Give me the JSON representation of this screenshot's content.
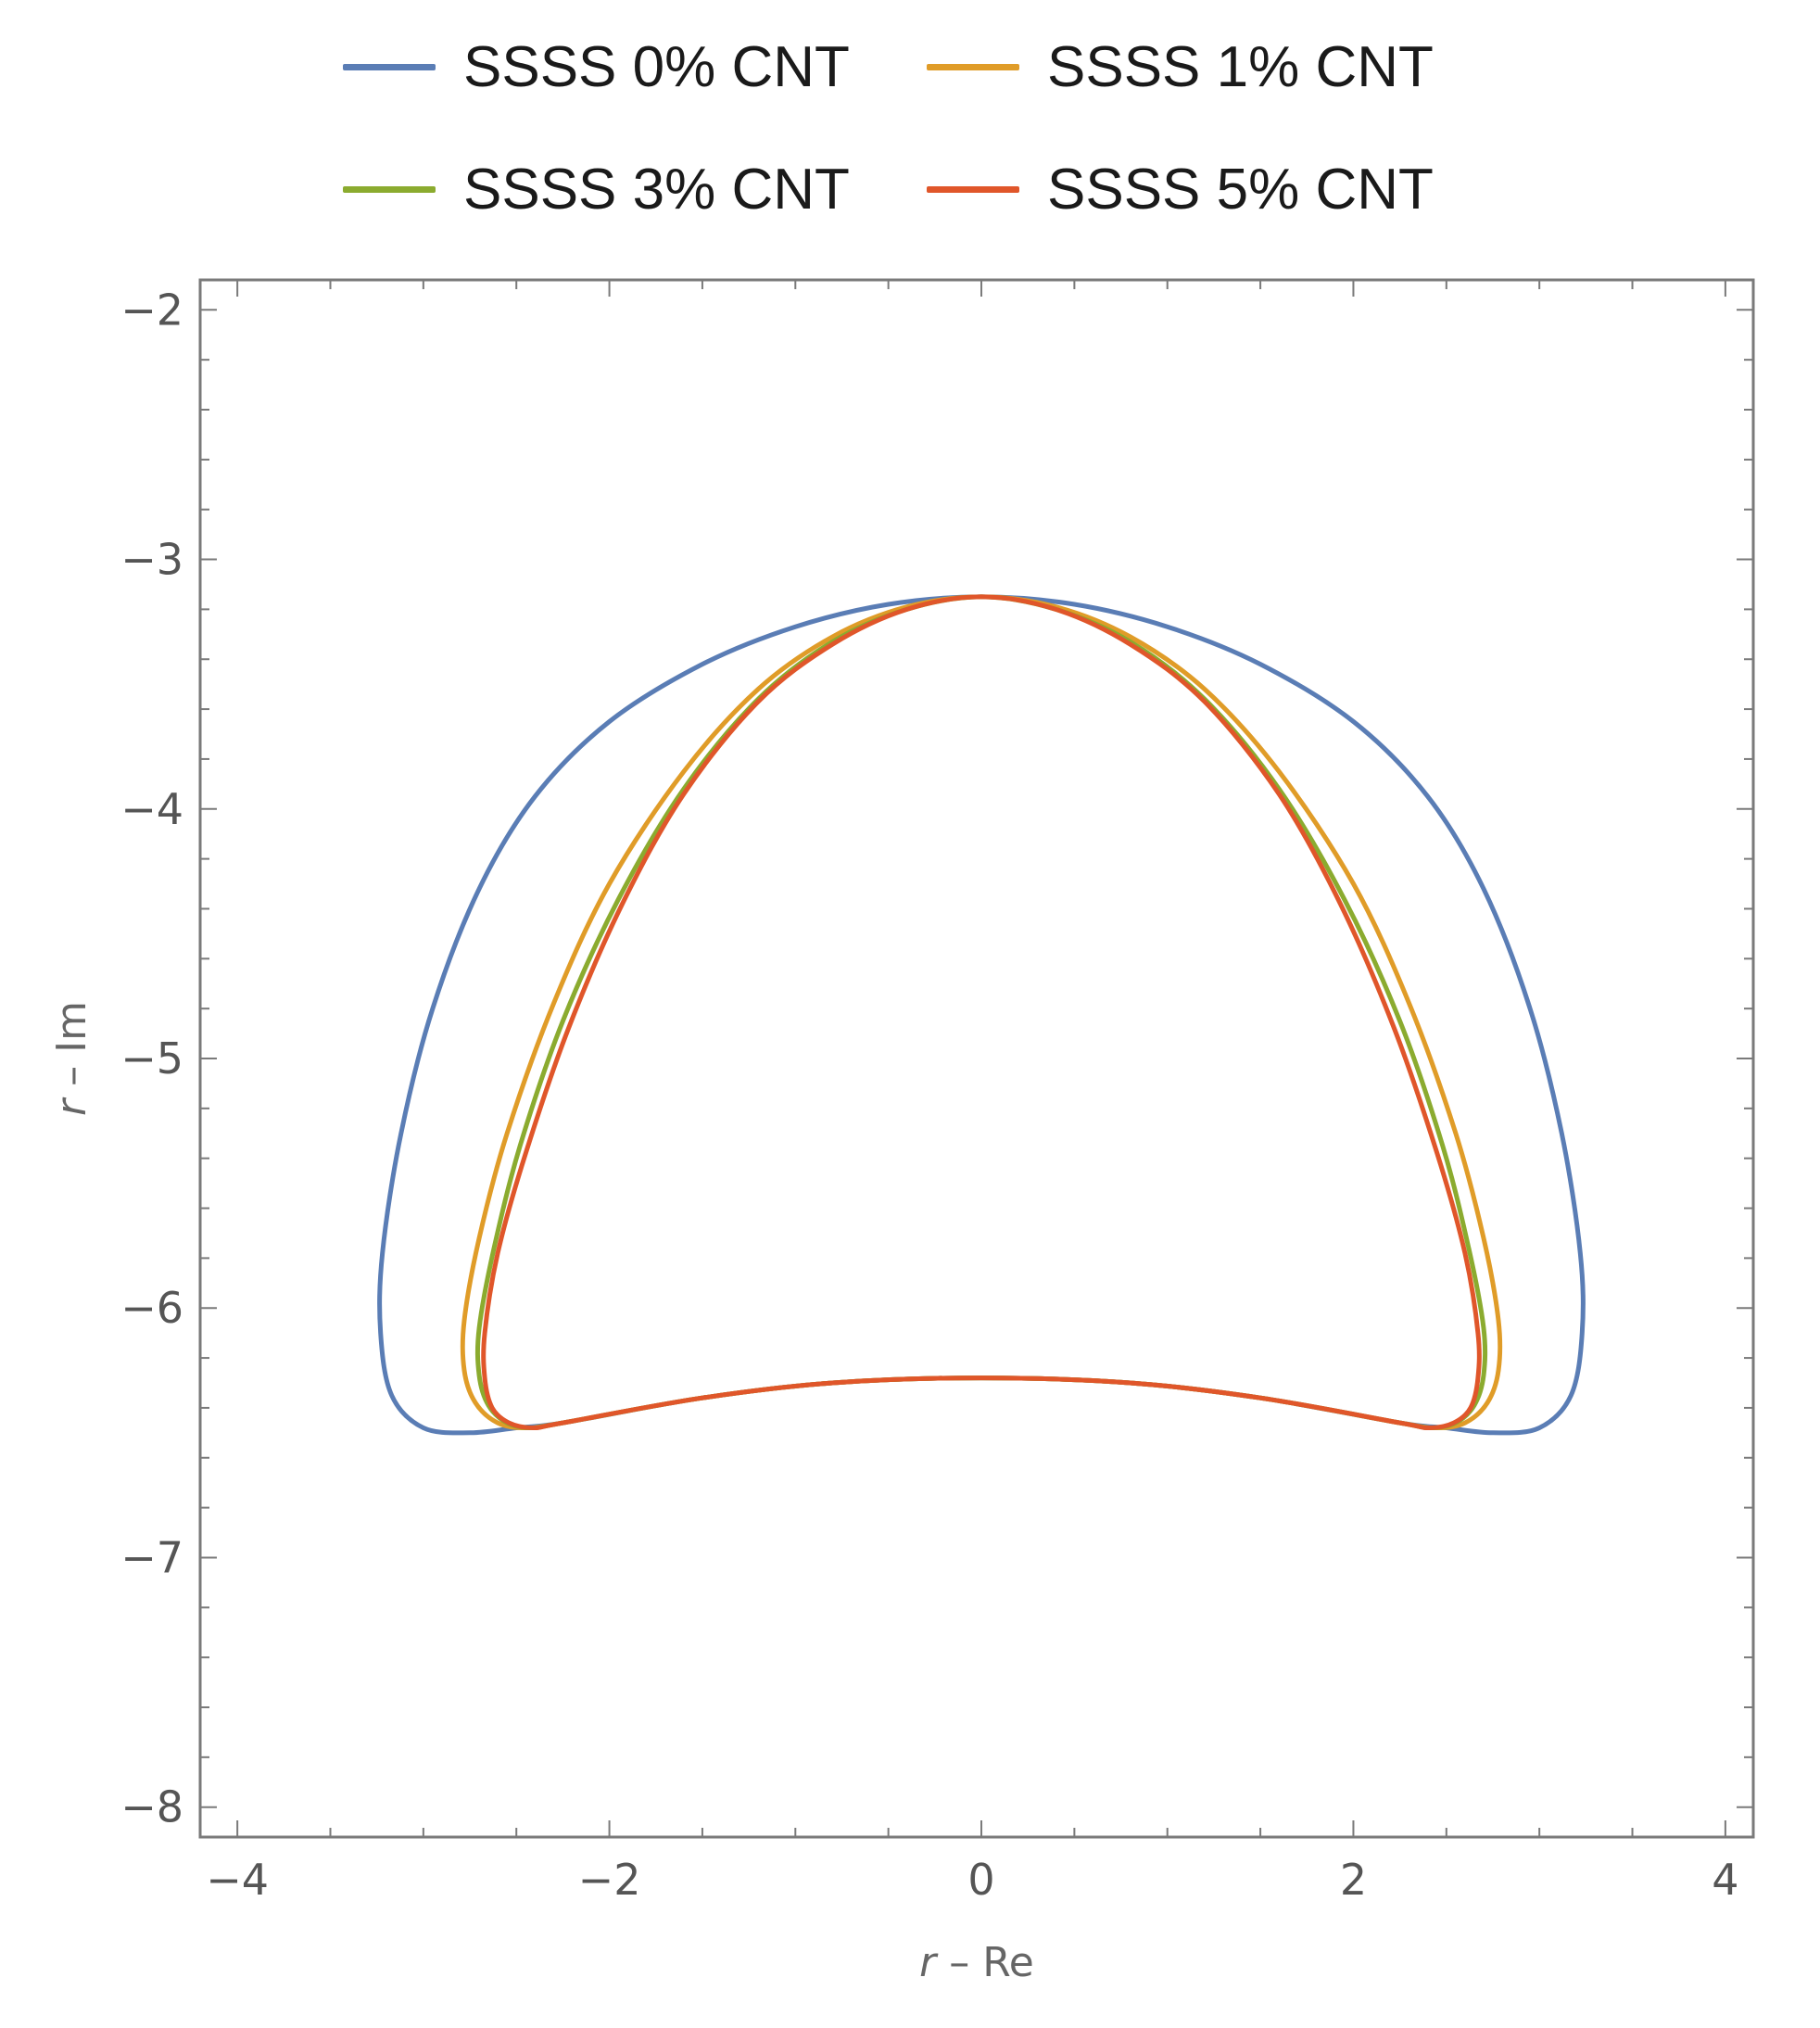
{
  "chart_data": {
    "type": "line",
    "title": "",
    "xlabel": "r – Re",
    "ylabel": "r – Im",
    "xlabel_parts": {
      "var": "r",
      "rest": " – Re"
    },
    "ylabel_parts": {
      "var": "r",
      "rest": " – Im"
    },
    "xlim": [
      -4.2,
      4.15
    ],
    "ylim": [
      -8.12,
      -1.88
    ],
    "x_ticks": [
      -4,
      -2,
      0,
      2,
      4
    ],
    "y_ticks": [
      -2,
      -3,
      -4,
      -5,
      -6,
      -7,
      -8
    ],
    "x_tick_labels": [
      "−4",
      "−2",
      "0",
      "2",
      "4"
    ],
    "y_tick_labels": [
      "−2",
      "−3",
      "−4",
      "−5",
      "−6",
      "−7",
      "−8"
    ],
    "grid": false,
    "legend_position": "top",
    "series": [
      {
        "name": "SSSS 0% CNT",
        "color": "#5a7db5",
        "x": [
          0,
          0.5,
          1.0,
          1.5,
          2.0,
          2.4,
          2.7,
          2.95,
          3.12,
          3.22,
          3.23,
          3.17,
          3.0,
          2.75,
          2.5,
          2.25,
          1.5,
          0.8,
          0,
          -0.8,
          -1.5,
          -2.25,
          -2.5,
          -2.75,
          -3.0,
          -3.17,
          -3.23,
          -3.22,
          -3.12,
          -2.95,
          -2.7,
          -2.4,
          -2.0,
          -1.5,
          -1.0,
          -0.5,
          0
        ],
        "y": [
          -3.15,
          -3.18,
          -3.27,
          -3.42,
          -3.65,
          -3.95,
          -4.32,
          -4.8,
          -5.3,
          -5.78,
          -6.1,
          -6.35,
          -6.48,
          -6.5,
          -6.48,
          -6.46,
          -6.36,
          -6.3,
          -6.28,
          -6.3,
          -6.36,
          -6.46,
          -6.48,
          -6.5,
          -6.48,
          -6.35,
          -6.1,
          -5.78,
          -5.3,
          -4.8,
          -4.32,
          -3.95,
          -3.65,
          -3.42,
          -3.27,
          -3.18,
          -3.15
        ]
      },
      {
        "name": "SSSS 1% CNT",
        "color": "#e09c28",
        "x": [
          0,
          0.4,
          0.8,
          1.2,
          1.6,
          2.0,
          2.3,
          2.55,
          2.7,
          2.78,
          2.78,
          2.72,
          2.6,
          2.45,
          2.25,
          1.5,
          0.8,
          0,
          -0.8,
          -1.5,
          -2.25,
          -2.45,
          -2.6,
          -2.72,
          -2.78,
          -2.78,
          -2.7,
          -2.55,
          -2.3,
          -2.0,
          -1.6,
          -1.2,
          -0.8,
          -0.4,
          0
        ],
        "y": [
          -3.15,
          -3.19,
          -3.31,
          -3.52,
          -3.85,
          -4.3,
          -4.78,
          -5.3,
          -5.72,
          -6.05,
          -6.25,
          -6.38,
          -6.46,
          -6.48,
          -6.46,
          -6.36,
          -6.3,
          -6.28,
          -6.3,
          -6.36,
          -6.46,
          -6.48,
          -6.46,
          -6.38,
          -6.25,
          -6.05,
          -5.72,
          -5.3,
          -4.78,
          -4.3,
          -3.85,
          -3.52,
          -3.31,
          -3.19,
          -3.15
        ]
      },
      {
        "name": "SSSS 3% CNT",
        "color": "#8bab2f",
        "x": [
          0,
          0.4,
          0.8,
          1.2,
          1.6,
          1.95,
          2.25,
          2.48,
          2.62,
          2.7,
          2.7,
          2.65,
          2.55,
          2.42,
          2.25,
          1.5,
          0.8,
          0,
          -0.8,
          -1.5,
          -2.25,
          -2.42,
          -2.55,
          -2.65,
          -2.7,
          -2.7,
          -2.62,
          -2.48,
          -2.25,
          -1.95,
          -1.6,
          -1.2,
          -0.8,
          -0.4,
          0
        ],
        "y": [
          -3.15,
          -3.2,
          -3.33,
          -3.56,
          -3.92,
          -4.36,
          -4.85,
          -5.35,
          -5.76,
          -6.08,
          -6.27,
          -6.39,
          -6.46,
          -6.48,
          -6.46,
          -6.36,
          -6.3,
          -6.28,
          -6.3,
          -6.36,
          -6.46,
          -6.48,
          -6.46,
          -6.39,
          -6.27,
          -6.08,
          -5.76,
          -5.35,
          -4.85,
          -4.36,
          -3.92,
          -3.56,
          -3.33,
          -3.2,
          -3.15
        ]
      },
      {
        "name": "SSSS 5% CNT",
        "color": "#e0562a",
        "x": [
          0,
          0.4,
          0.8,
          1.2,
          1.6,
          1.93,
          2.22,
          2.45,
          2.6,
          2.67,
          2.67,
          2.63,
          2.54,
          2.41,
          2.25,
          1.5,
          0.8,
          0,
          -0.8,
          -1.5,
          -2.25,
          -2.41,
          -2.54,
          -2.63,
          -2.67,
          -2.67,
          -2.6,
          -2.45,
          -2.22,
          -1.93,
          -1.6,
          -1.2,
          -0.8,
          -0.4,
          0
        ],
        "y": [
          -3.15,
          -3.2,
          -3.34,
          -3.57,
          -3.94,
          -4.38,
          -4.88,
          -5.38,
          -5.78,
          -6.1,
          -6.28,
          -6.4,
          -6.46,
          -6.48,
          -6.46,
          -6.36,
          -6.3,
          -6.28,
          -6.3,
          -6.36,
          -6.46,
          -6.48,
          -6.46,
          -6.4,
          -6.28,
          -6.1,
          -5.78,
          -5.38,
          -4.88,
          -4.38,
          -3.94,
          -3.57,
          -3.34,
          -3.2,
          -3.15
        ]
      }
    ]
  }
}
